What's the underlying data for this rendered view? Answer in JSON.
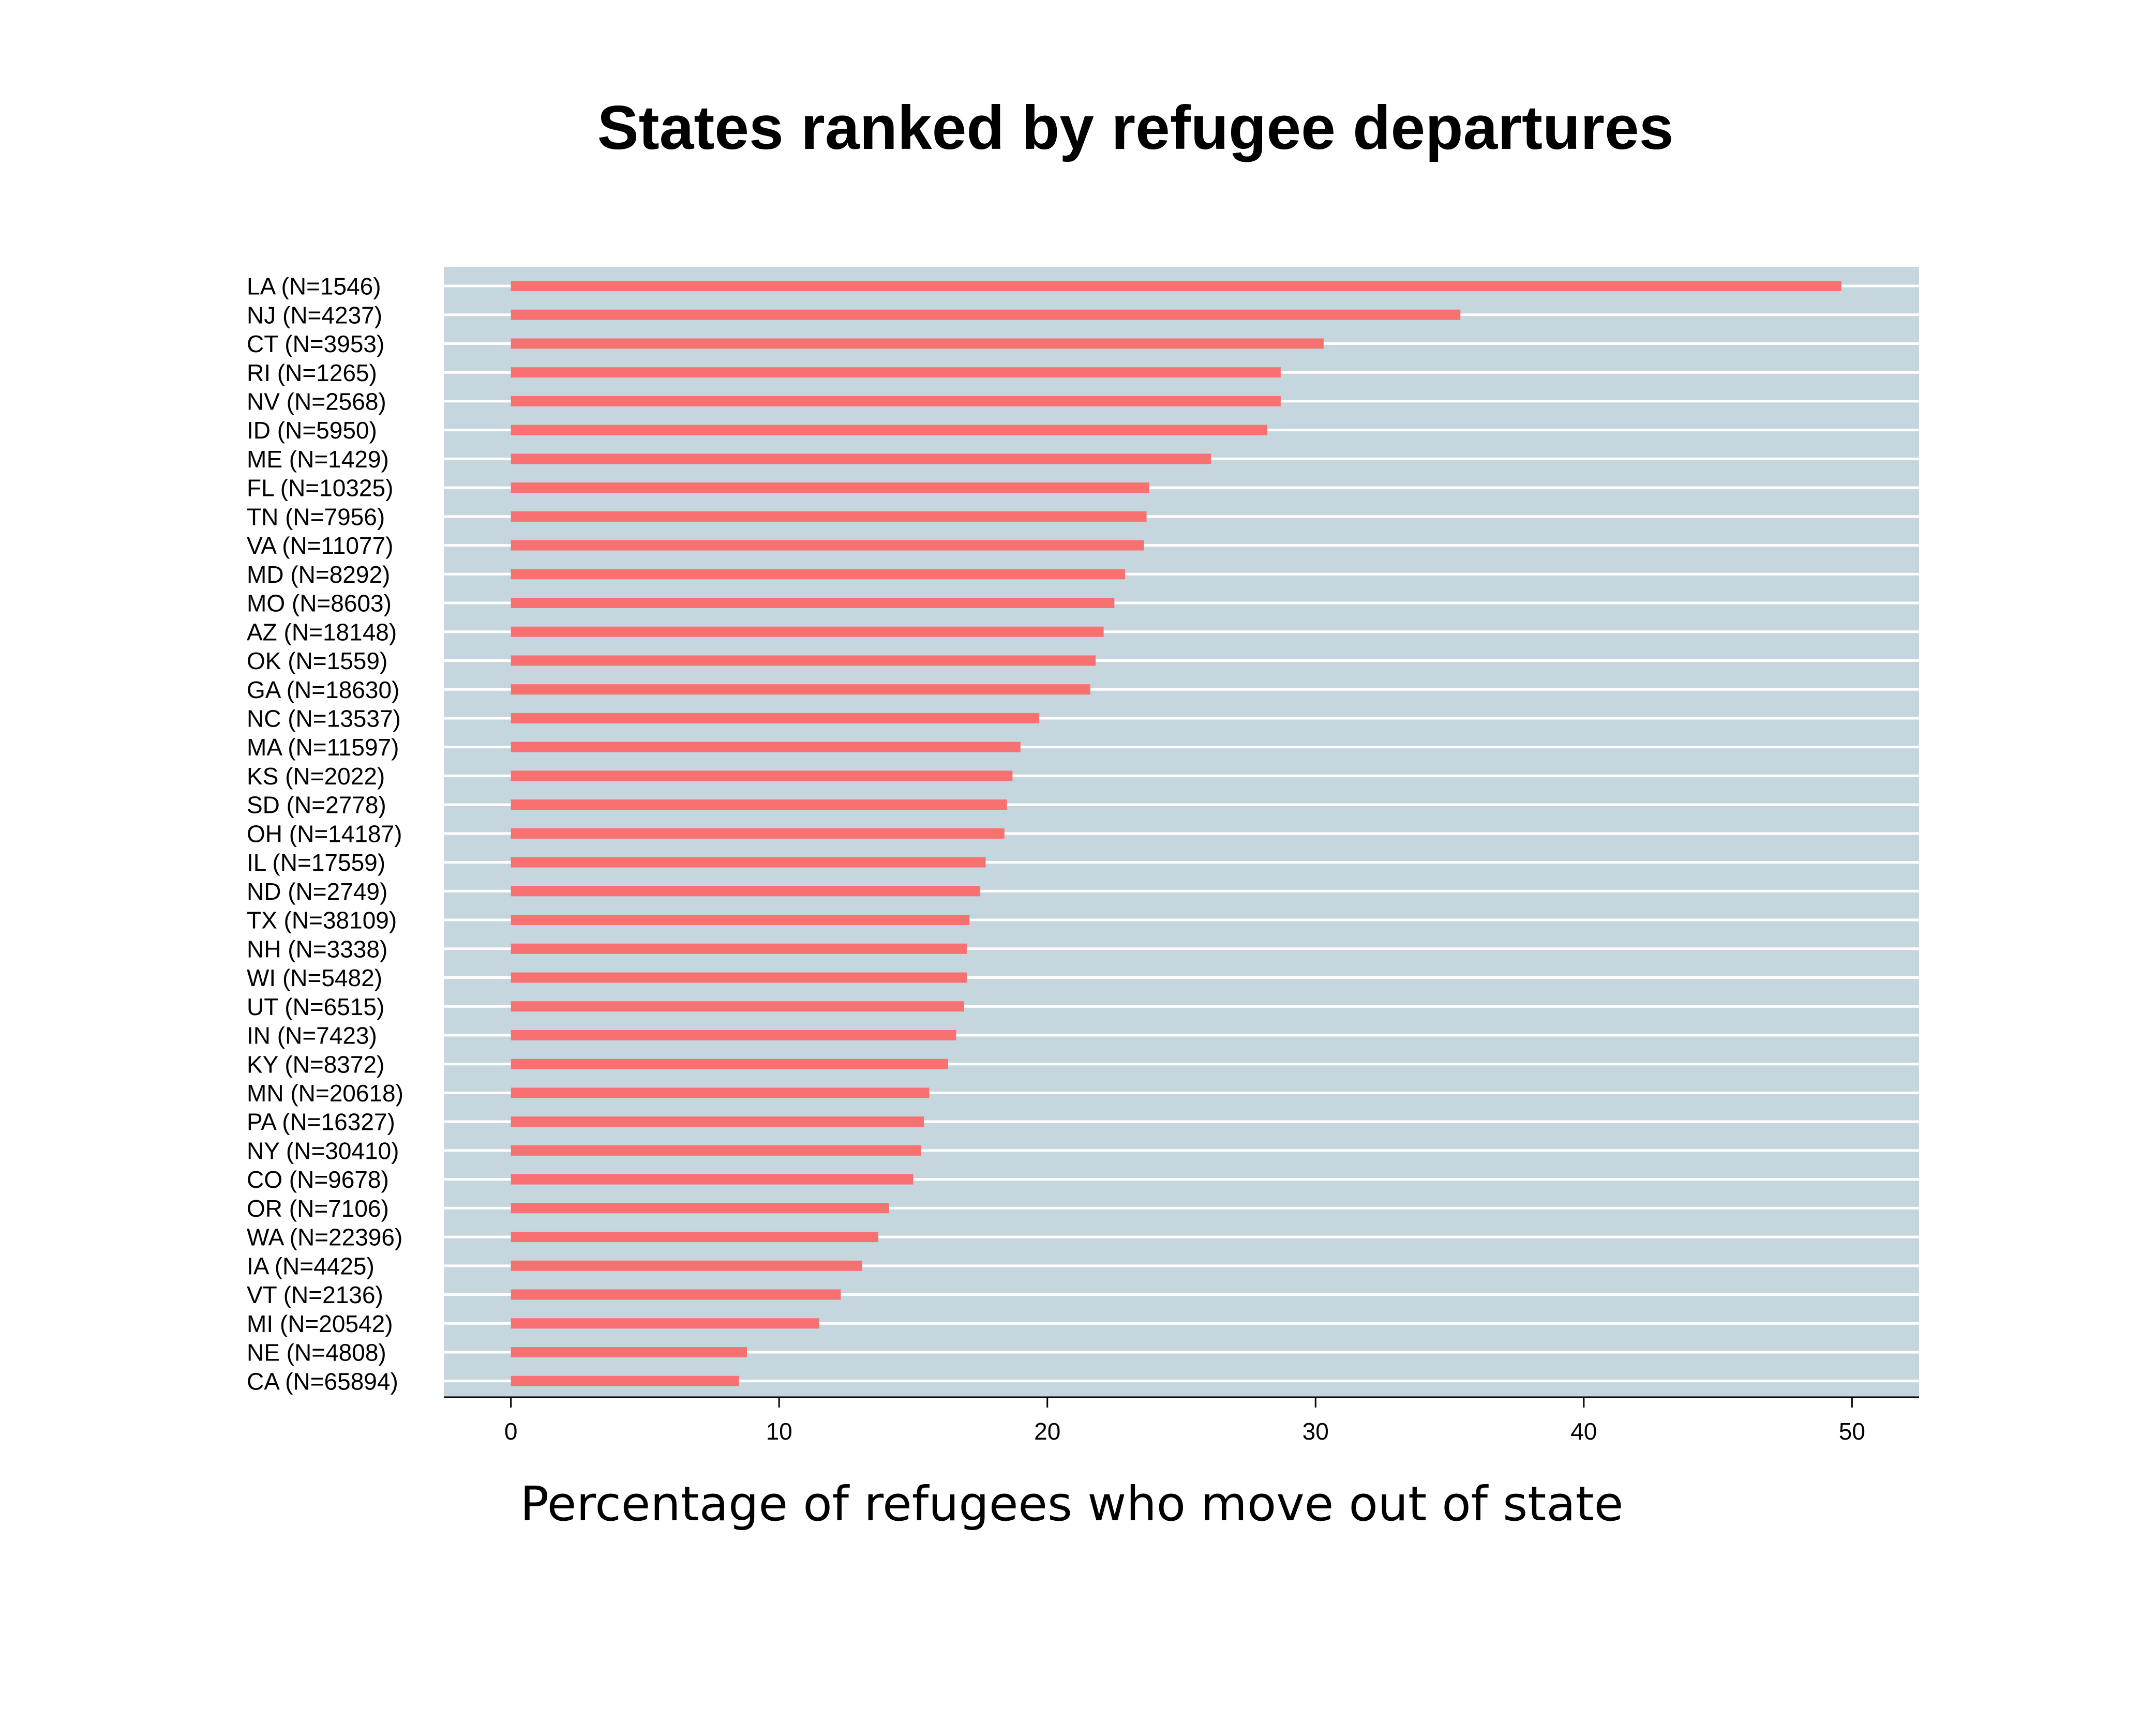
{
  "chart_data": {
    "type": "bar",
    "orientation": "horizontal",
    "title": "States ranked by refugee departures",
    "xlabel": "Percentage of refugees who move out of state",
    "ylabel": "",
    "xlim": [
      -2.5,
      52.5
    ],
    "xticks": [
      0,
      10,
      20,
      30,
      40,
      50
    ],
    "grid": true,
    "legend": "none",
    "colors": {
      "bar": "#f87171",
      "plot_background": "#c5d6df",
      "gridline": "#ffffff",
      "axis": "#000000",
      "text": "#000000"
    },
    "categories": [
      "LA (N=1546)",
      "NJ (N=4237)",
      "CT (N=3953)",
      "RI (N=1265)",
      "NV (N=2568)",
      "ID (N=5950)",
      "ME (N=1429)",
      "FL (N=10325)",
      "TN (N=7956)",
      "VA (N=11077)",
      "MD (N=8292)",
      "MO (N=8603)",
      "AZ (N=18148)",
      "OK (N=1559)",
      "GA (N=18630)",
      "NC (N=13537)",
      "MA (N=11597)",
      "KS (N=2022)",
      "SD (N=2778)",
      "OH (N=14187)",
      "IL (N=17559)",
      "ND (N=2749)",
      "TX (N=38109)",
      "NH (N=3338)",
      "WI (N=5482)",
      "UT (N=6515)",
      "IN (N=7423)",
      "KY (N=8372)",
      "MN (N=20618)",
      "PA (N=16327)",
      "NY (N=30410)",
      "CO (N=9678)",
      "OR (N=7106)",
      "WA (N=22396)",
      "IA (N=4425)",
      "VT (N=2136)",
      "MI (N=20542)",
      "NE (N=4808)",
      "CA (N=65894)"
    ],
    "values": [
      49.6,
      35.4,
      30.3,
      28.7,
      28.7,
      28.2,
      26.1,
      23.8,
      23.7,
      23.6,
      22.9,
      22.5,
      22.1,
      21.8,
      21.6,
      19.7,
      19.0,
      18.7,
      18.5,
      18.4,
      17.7,
      17.5,
      17.1,
      17.0,
      17.0,
      16.9,
      16.6,
      16.3,
      15.6,
      15.4,
      15.3,
      15.0,
      14.1,
      13.7,
      13.1,
      12.3,
      11.5,
      8.8,
      8.5
    ]
  }
}
